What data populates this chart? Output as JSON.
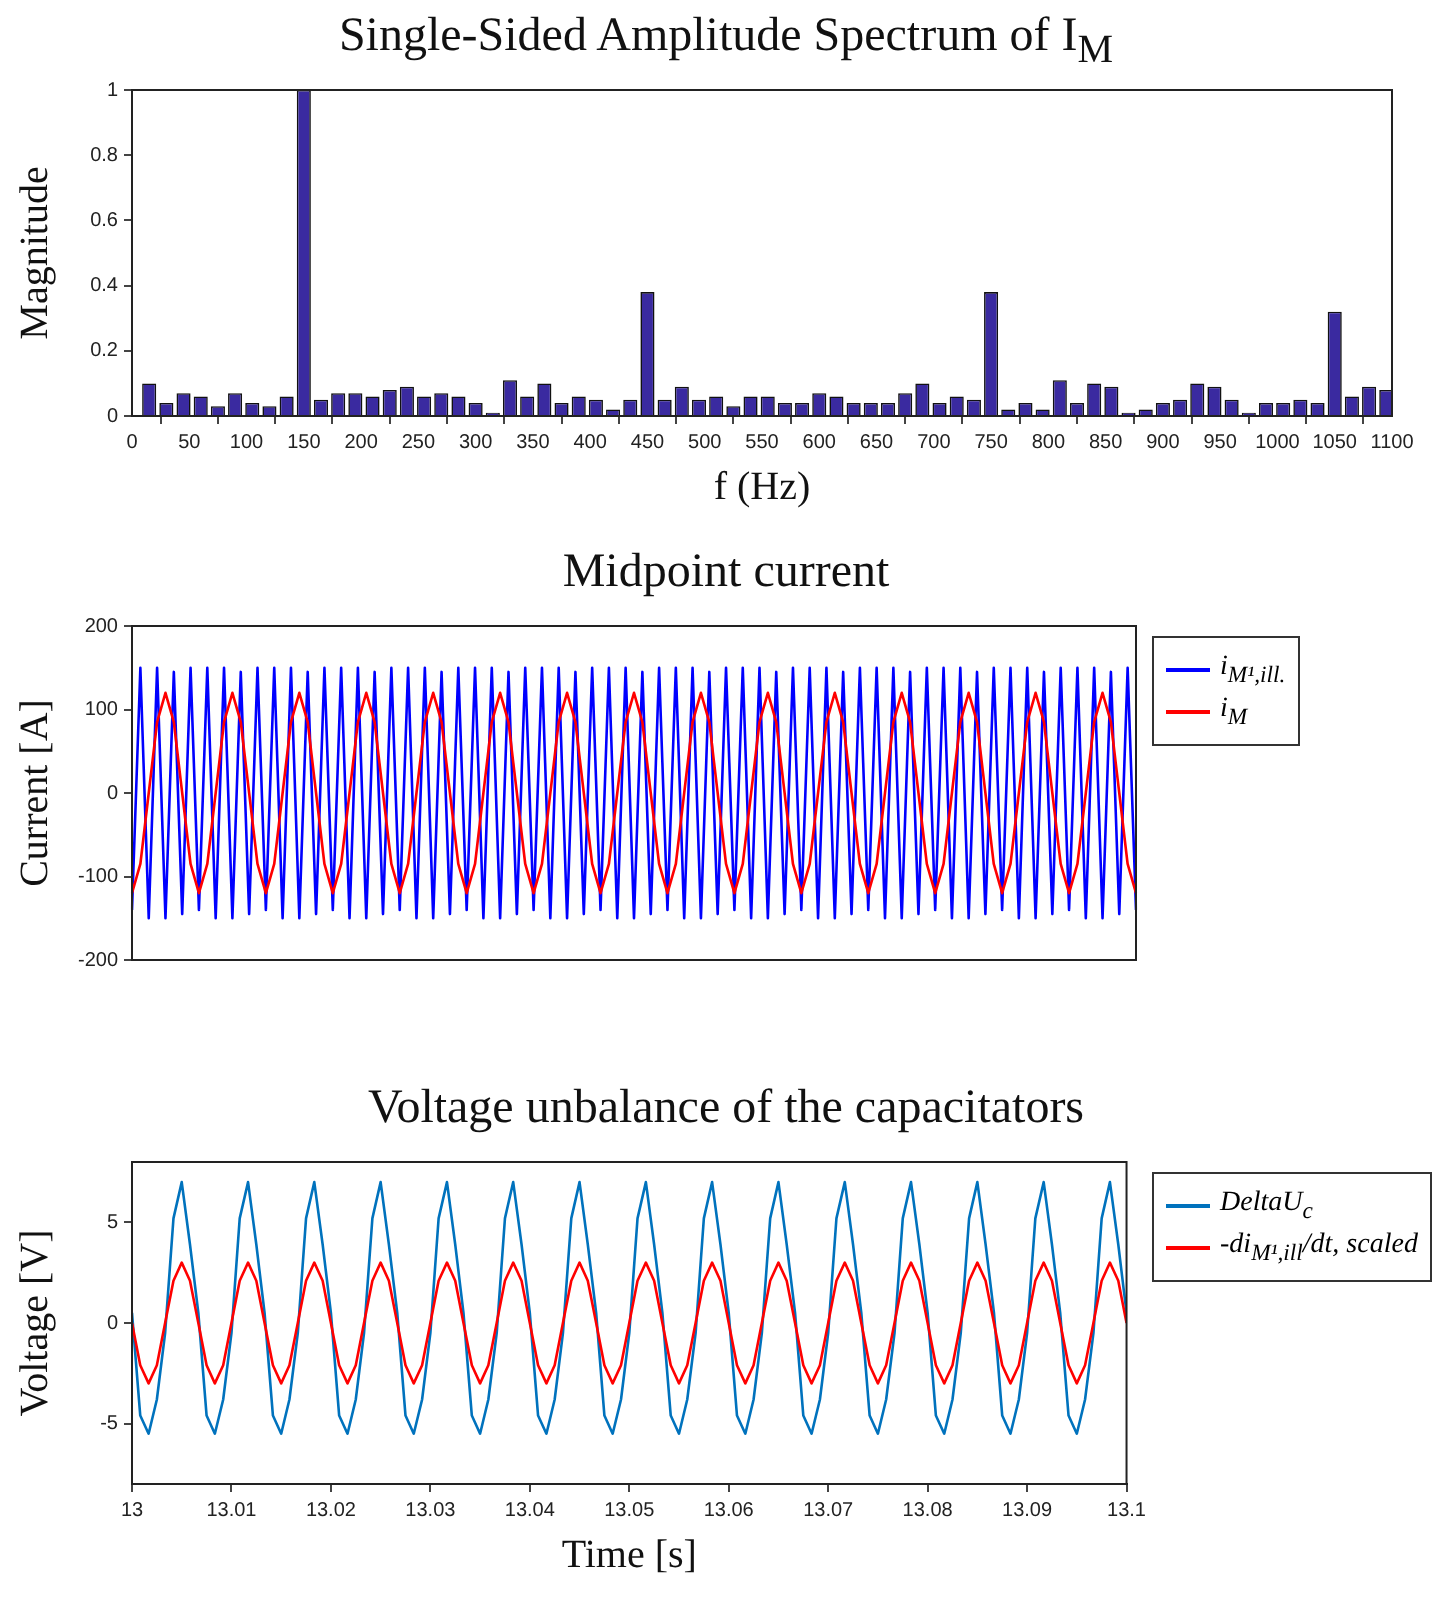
{
  "chart_data": [
    {
      "type": "bar",
      "title": "Single-Sided Amplitude Spectrum of I$_{M}$",
      "xlabel": "f (Hz)",
      "ylabel": "Magnitude",
      "x": [
        15,
        30,
        45,
        60,
        75,
        90,
        105,
        120,
        135,
        150,
        165,
        180,
        195,
        210,
        225,
        240,
        255,
        270,
        285,
        300,
        315,
        330,
        345,
        360,
        375,
        390,
        405,
        420,
        435,
        450,
        465,
        480,
        495,
        510,
        525,
        540,
        555,
        570,
        585,
        600,
        615,
        630,
        645,
        660,
        675,
        690,
        705,
        720,
        735,
        750,
        765,
        780,
        795,
        810,
        825,
        840,
        855,
        870,
        885,
        900,
        915,
        930,
        945,
        960,
        975,
        990,
        1005,
        1020,
        1035,
        1050,
        1065,
        1080,
        1095
      ],
      "values": [
        0.1,
        0.04,
        0.07,
        0.06,
        0.03,
        0.07,
        0.04,
        0.03,
        0.06,
        1,
        0.05,
        0.07,
        0.07,
        0.06,
        0.08,
        0.09,
        0.06,
        0.07,
        0.06,
        0.04,
        0.01,
        0.11,
        0.06,
        0.1,
        0.04,
        0.06,
        0.05,
        0.02,
        0.05,
        0.38,
        0.05,
        0.09,
        0.05,
        0.06,
        0.03,
        0.06,
        0.06,
        0.04,
        0.04,
        0.07,
        0.06,
        0.04,
        0.04,
        0.04,
        0.07,
        0.1,
        0.04,
        0.06,
        0.05,
        0.38,
        0.02,
        0.04,
        0.02,
        0.11,
        0.04,
        0.1,
        0.09,
        0.01,
        0.02,
        0.04,
        0.05,
        0.1,
        0.09,
        0.05,
        0.01,
        0.04,
        0.04,
        0.05,
        0.04,
        0.32,
        0.06,
        0.09,
        0.08
      ],
      "color": "#3a2aa0",
      "xlim": [
        0,
        1100
      ],
      "xticks": [
        0,
        50,
        100,
        150,
        200,
        250,
        300,
        350,
        400,
        450,
        500,
        550,
        600,
        650,
        700,
        750,
        800,
        850,
        900,
        950,
        1000,
        1050,
        1100
      ],
      "ylim": [
        0,
        1
      ],
      "yticks": [
        0,
        0.2,
        0.4,
        0.6,
        0.8,
        1
      ],
      "grid": false
    },
    {
      "type": "line",
      "title": "Midpoint current",
      "ylabel": "Current [A]",
      "categories": [
        null,
        null,
        null,
        null,
        null,
        null,
        null,
        null,
        null,
        null,
        null,
        null,
        null,
        null,
        null,
        null,
        null,
        null,
        null,
        null,
        null,
        null,
        null,
        null,
        null,
        null,
        null,
        null,
        null,
        null,
        null,
        null,
        null,
        null,
        null,
        null,
        null,
        null,
        null,
        null,
        null,
        null,
        null,
        null,
        null,
        null,
        null,
        null,
        null,
        null,
        null,
        null,
        null,
        null,
        null,
        null,
        null,
        null,
        null,
        null,
        null,
        null,
        null,
        null,
        null,
        null,
        null,
        null,
        null,
        null,
        null,
        null,
        null,
        null,
        null,
        null,
        null,
        null,
        null,
        null,
        null,
        null,
        null,
        null,
        null,
        null,
        null,
        null,
        null,
        null,
        null,
        null,
        null,
        null,
        null,
        null,
        null,
        null,
        null,
        null,
        null,
        null,
        null,
        null,
        null,
        null,
        null,
        null,
        null,
        null,
        null,
        null,
        null,
        null,
        null,
        null,
        null,
        null,
        null,
        null,
        null
      ],
      "series": [
        {
          "name": "i$_{M¹,ill.}$",
          "color": "#0000ff",
          "values": [
            -140,
            150,
            -150,
            150,
            -150,
            145,
            -145,
            150,
            -140,
            150,
            -150,
            150,
            -150,
            145,
            -145,
            150,
            -140,
            150,
            -150,
            150,
            -150,
            145,
            -145,
            150,
            -140,
            150,
            -150,
            150,
            -150,
            145,
            -145,
            150,
            -140,
            150,
            -150,
            150,
            -150,
            145,
            -145,
            150,
            -140,
            150,
            -150,
            150,
            -150,
            145,
            -145,
            150,
            -140,
            150,
            -150,
            150,
            -150,
            145,
            -145,
            150,
            -140,
            150,
            -150,
            150,
            -150,
            145,
            -145,
            150,
            -140,
            150,
            -150,
            150,
            -150,
            145,
            -145,
            150,
            -140,
            150,
            -150,
            150,
            -150,
            145,
            -145,
            150,
            -140,
            150,
            -150,
            150,
            -150,
            145,
            -145,
            150,
            -140,
            150,
            -150,
            150,
            -150,
            145,
            -145,
            150,
            -140,
            150,
            -150,
            150,
            -150,
            145,
            -145,
            150,
            -140,
            150,
            -150,
            150,
            -150,
            145,
            -145,
            150,
            -140,
            150,
            -150,
            150,
            -150,
            145,
            -145,
            150,
            -140
          ]
        },
        {
          "name": "i$_{M}$",
          "color": "#ff0000",
          "values": [
            -120,
            -85,
            0,
            85,
            120,
            85,
            0,
            -85,
            -120,
            -85,
            0,
            85,
            120,
            85,
            0,
            -85,
            -120,
            -85,
            0,
            85,
            120,
            85,
            0,
            -85,
            -120,
            -85,
            0,
            85,
            120,
            85,
            0,
            -85,
            -120,
            -85,
            0,
            85,
            120,
            85,
            0,
            -85,
            -120,
            -85,
            0,
            85,
            120,
            85,
            0,
            -85,
            -120,
            -85,
            0,
            85,
            120,
            85,
            0,
            -85,
            -120,
            -85,
            0,
            85,
            120,
            85,
            0,
            -85,
            -120,
            -85,
            0,
            85,
            120,
            85,
            0,
            -85,
            -120,
            -85,
            0,
            85,
            120,
            85,
            0,
            -85,
            -120,
            -85,
            0,
            85,
            120,
            85,
            0,
            -85,
            -120,
            -85,
            0,
            85,
            120,
            85,
            0,
            -85,
            -120,
            -85,
            0,
            85,
            120,
            85,
            0,
            -85,
            -120,
            -85,
            0,
            85,
            120,
            85,
            0,
            -85,
            -120,
            -85,
            0,
            85,
            120,
            85,
            0,
            -85,
            -120
          ]
        }
      ],
      "ylim": [
        -200,
        200
      ],
      "yticks": [
        -200,
        -100,
        0,
        100,
        200
      ],
      "tick_labels": "y",
      "grid": false,
      "legend": "right",
      "marker": "none"
    },
    {
      "type": "line",
      "title": "Voltage unbalance of the capacitators",
      "xlabel": "Time [s]",
      "ylabel": "Voltage [V]",
      "x": [
        13,
        13.00083,
        13.00167,
        13.0025,
        13.00333,
        13.00417,
        13.005,
        13.00583,
        13.00667,
        13.0075,
        13.00833,
        13.00917,
        13.01,
        13.01083,
        13.01167,
        13.0125,
        13.01333,
        13.01417,
        13.015,
        13.01583,
        13.01667,
        13.0175,
        13.01833,
        13.01917,
        13.02,
        13.02083,
        13.02167,
        13.0225,
        13.02333,
        13.02417,
        13.025,
        13.02583,
        13.02667,
        13.0275,
        13.02833,
        13.02917,
        13.03,
        13.03083,
        13.03167,
        13.0325,
        13.03333,
        13.03417,
        13.035,
        13.03583,
        13.03667,
        13.0375,
        13.03833,
        13.03917,
        13.04,
        13.04083,
        13.04167,
        13.0425,
        13.04333,
        13.04417,
        13.045,
        13.04583,
        13.04667,
        13.0475,
        13.04833,
        13.04917,
        13.05,
        13.05083,
        13.05167,
        13.0525,
        13.05333,
        13.05417,
        13.055,
        13.05583,
        13.05667,
        13.0575,
        13.05833,
        13.05917,
        13.06,
        13.06083,
        13.06167,
        13.0625,
        13.06333,
        13.06417,
        13.065,
        13.06583,
        13.06667,
        13.0675,
        13.06833,
        13.06917,
        13.07,
        13.07083,
        13.07167,
        13.0725,
        13.07333,
        13.07417,
        13.075,
        13.07583,
        13.07667,
        13.0775,
        13.07833,
        13.07917,
        13.08,
        13.08083,
        13.08167,
        13.0825,
        13.08333,
        13.08417,
        13.085,
        13.08583,
        13.08667,
        13.0875,
        13.08833,
        13.08917,
        13.09,
        13.09083,
        13.09167,
        13.0925,
        13.09333,
        13.09417,
        13.095,
        13.09583,
        13.09667,
        13.0975,
        13.09833,
        13.09917,
        13.1
      ],
      "series": [
        {
          "name": "DeltaU$_{c}$",
          "color": "#0072bd",
          "values": [
            0.5,
            -4.6,
            -5.5,
            -3.8,
            -0.5,
            5.2,
            7,
            3.9,
            0.5,
            -4.6,
            -5.5,
            -3.8,
            -0.5,
            5.2,
            7,
            3.9,
            0.5,
            -4.6,
            -5.5,
            -3.8,
            -0.5,
            5.2,
            7,
            3.9,
            0.5,
            -4.6,
            -5.5,
            -3.8,
            -0.5,
            5.2,
            7,
            3.9,
            0.5,
            -4.6,
            -5.5,
            -3.8,
            -0.5,
            5.2,
            7,
            3.9,
            0.5,
            -4.6,
            -5.5,
            -3.8,
            -0.5,
            5.2,
            7,
            3.9,
            0.5,
            -4.6,
            -5.5,
            -3.8,
            -0.5,
            5.2,
            7,
            3.9,
            0.5,
            -4.6,
            -5.5,
            -3.8,
            -0.5,
            5.2,
            7,
            3.9,
            0.5,
            -4.6,
            -5.5,
            -3.8,
            -0.5,
            5.2,
            7,
            3.9,
            0.5,
            -4.6,
            -5.5,
            -3.8,
            -0.5,
            5.2,
            7,
            3.9,
            0.5,
            -4.6,
            -5.5,
            -3.8,
            -0.5,
            5.2,
            7,
            3.9,
            0.5,
            -4.6,
            -5.5,
            -3.8,
            -0.5,
            5.2,
            7,
            3.9,
            0.5,
            -4.6,
            -5.5,
            -3.8,
            -0.5,
            5.2,
            7,
            3.9,
            0.5,
            -4.6,
            -5.5,
            -3.8,
            -0.5,
            5.2,
            7,
            3.9,
            0.5,
            -4.6,
            -5.5,
            -3.8,
            -0.5,
            5.2,
            7,
            3.9,
            0.5
          ]
        },
        {
          "name": "-di$_{M¹,ill}$/dt, scaled",
          "color": "#ff0000",
          "values": [
            0,
            -2.1,
            -3,
            -2.1,
            0,
            2.1,
            3,
            2.1,
            0,
            -2.1,
            -3,
            -2.1,
            0,
            2.1,
            3,
            2.1,
            0,
            -2.1,
            -3,
            -2.1,
            0,
            2.1,
            3,
            2.1,
            0,
            -2.1,
            -3,
            -2.1,
            0,
            2.1,
            3,
            2.1,
            0,
            -2.1,
            -3,
            -2.1,
            0,
            2.1,
            3,
            2.1,
            0,
            -2.1,
            -3,
            -2.1,
            0,
            2.1,
            3,
            2.1,
            0,
            -2.1,
            -3,
            -2.1,
            0,
            2.1,
            3,
            2.1,
            0,
            -2.1,
            -3,
            -2.1,
            0,
            2.1,
            3,
            2.1,
            0,
            -2.1,
            -3,
            -2.1,
            0,
            2.1,
            3,
            2.1,
            0,
            -2.1,
            -3,
            -2.1,
            0,
            2.1,
            3,
            2.1,
            0,
            -2.1,
            -3,
            -2.1,
            0,
            2.1,
            3,
            2.1,
            0,
            -2.1,
            -3,
            -2.1,
            0,
            2.1,
            3,
            2.1,
            0,
            -2.1,
            -3,
            -2.1,
            0,
            2.1,
            3,
            2.1,
            0,
            -2.1,
            -3,
            -2.1,
            0,
            2.1,
            3,
            2.1,
            0,
            -2.1,
            -3,
            -2.1,
            0,
            2.1,
            3,
            2.1,
            0
          ]
        }
      ],
      "xlim": [
        13,
        13.1
      ],
      "xticks": [
        13,
        13.01,
        13.02,
        13.03,
        13.04,
        13.05,
        13.06,
        13.07,
        13.08,
        13.09,
        13.1
      ],
      "ylim": [
        -8,
        8
      ],
      "yticks": [
        -5,
        0,
        5
      ],
      "grid": false,
      "legend": "right",
      "marker": "none"
    }
  ]
}
